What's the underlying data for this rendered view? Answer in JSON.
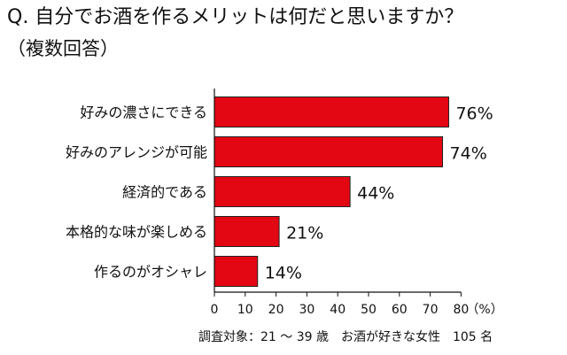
{
  "header": {
    "title": "Q. 自分でお酒を作るメリットは何だと思いますか？",
    "subtitle": "（複数回答）"
  },
  "chart_data": {
    "type": "bar",
    "orientation": "horizontal",
    "categories": [
      "好みの濃さにできる",
      "好みのアレンジが可能",
      "経済的である",
      "本格的な味が楽しめる",
      "作るのがオシャレ"
    ],
    "values": [
      76,
      74,
      44,
      21,
      14
    ],
    "value_labels": [
      "76%",
      "74%",
      "44%",
      "21%",
      "14%"
    ],
    "xlim": [
      0,
      80
    ],
    "xticks": [
      0,
      10,
      20,
      30,
      40,
      50,
      60,
      70,
      80
    ],
    "xunit": "（%）",
    "grid": false,
    "bar_color": "#e30613",
    "bar_edge_color": "#222222"
  },
  "footnote": "調査対象：21 ～ 39 歳　お酒が好きな女性　105 名"
}
